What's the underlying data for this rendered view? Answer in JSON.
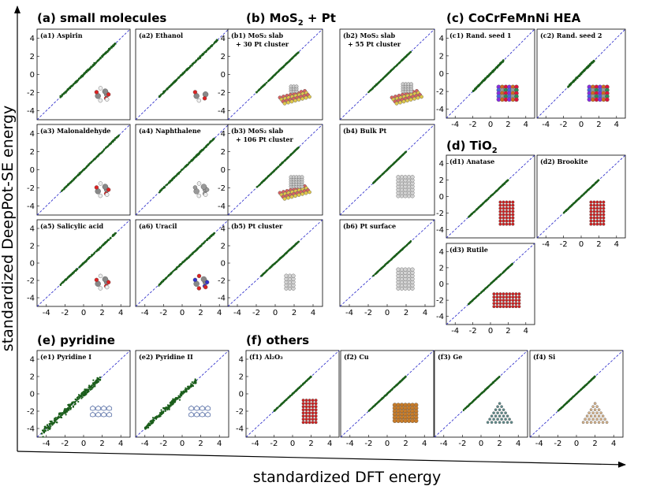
{
  "figure": {
    "x_title": "standardized DFT energy",
    "y_title": "standardized DeepPot-SE energy"
  },
  "sections": [
    {
      "id": "a",
      "title": "(a) small molecules"
    },
    {
      "id": "b",
      "title": "(b) MoS",
      "sub": "2",
      "suffix": " + Pt"
    },
    {
      "id": "c",
      "title": "(c) CoCrFeMnNi HEA"
    },
    {
      "id": "d",
      "title": "(d) TiO",
      "sub": "2"
    },
    {
      "id": "e",
      "title": "(e) pyridine"
    },
    {
      "id": "f",
      "title": "(f) others"
    }
  ],
  "colors": {
    "points": "#1b5e1b",
    "diagonal": "#2020c8",
    "axis_arrow": "#000000"
  },
  "chart_data": [
    {
      "id": "a1",
      "type": "scatter",
      "title": "(a1) Aspirin",
      "title2": "",
      "xlim": [
        -5,
        5
      ],
      "ylim": [
        -5,
        5
      ],
      "xticks": [],
      "yticks": [
        -4,
        -2,
        0,
        2,
        4
      ],
      "points": {
        "xmin": -2.5,
        "xmax": 3.5,
        "noise": 0.09
      },
      "inset": "aspirin molecule"
    },
    {
      "id": "a2",
      "type": "scatter",
      "title": "(a2) Ethanol",
      "title2": "",
      "xlim": [
        -5,
        5
      ],
      "ylim": [
        -5,
        5
      ],
      "xticks": [],
      "yticks": [],
      "points": {
        "xmin": -2.5,
        "xmax": 3.8,
        "noise": 0.08
      },
      "inset": "ethanol molecule"
    },
    {
      "id": "a3",
      "type": "scatter",
      "title": "(a3) Malonaldehyde",
      "title2": "",
      "xlim": [
        -5,
        5
      ],
      "ylim": [
        -5,
        5
      ],
      "xticks": [],
      "yticks": [
        -4,
        -2,
        0,
        2,
        4
      ],
      "points": {
        "xmin": -2.5,
        "xmax": 3.8,
        "noise": 0.06
      },
      "inset": "malonaldehyde molecule"
    },
    {
      "id": "a4",
      "type": "scatter",
      "title": "(a4) Naphthalene",
      "title2": "",
      "xlim": [
        -5,
        5
      ],
      "ylim": [
        -5,
        5
      ],
      "xticks": [],
      "yticks": [],
      "points": {
        "xmin": -2.5,
        "xmax": 3.5,
        "noise": 0.07
      },
      "inset": "naphthalene molecule"
    },
    {
      "id": "a5",
      "type": "scatter",
      "title": "(a5) Salicylic acid",
      "title2": "",
      "xlim": [
        -5,
        5
      ],
      "ylim": [
        -5,
        5
      ],
      "xticks": [
        -4,
        -2,
        0,
        2,
        4
      ],
      "yticks": [
        -4,
        -2,
        0,
        2,
        4
      ],
      "points": {
        "xmin": -2.5,
        "xmax": 3.5,
        "noise": 0.08
      },
      "inset": "salicylic acid molecule"
    },
    {
      "id": "a6",
      "type": "scatter",
      "title": "(a6) Uracil",
      "title2": "",
      "xlim": [
        -5,
        5
      ],
      "ylim": [
        -5,
        5
      ],
      "xticks": [
        -4,
        -2,
        0,
        2,
        4
      ],
      "yticks": [],
      "points": {
        "xmin": -2.5,
        "xmax": 3.5,
        "noise": 0.07
      },
      "inset": "uracil molecule"
    },
    {
      "id": "b1",
      "type": "scatter",
      "title": "(b1) MoS₂ slab",
      "title2": "+ 30 Pt cluster",
      "xlim": [
        -5,
        5
      ],
      "ylim": [
        -5,
        5
      ],
      "xticks": [],
      "yticks": [
        -4,
        -2,
        0,
        2,
        4
      ],
      "points": {
        "xmin": -2.0,
        "xmax": 2.5,
        "noise": 0.04
      },
      "inset": "MoS2 slab with 30 Pt cluster"
    },
    {
      "id": "b2",
      "type": "scatter",
      "title": "(b2) MoS₂ slab",
      "title2": "+ 55 Pt cluster",
      "xlim": [
        -5,
        5
      ],
      "ylim": [
        -5,
        5
      ],
      "xticks": [],
      "yticks": [],
      "points": {
        "xmin": -2.0,
        "xmax": 2.5,
        "noise": 0.04
      },
      "inset": "MoS2 slab with 55 Pt cluster"
    },
    {
      "id": "b3",
      "type": "scatter",
      "title": "(b3) MoS₂ slab",
      "title2": "+ 106 Pt cluster",
      "xlim": [
        -5,
        5
      ],
      "ylim": [
        -5,
        5
      ],
      "xticks": [],
      "yticks": [
        -4,
        -2,
        0,
        2,
        4
      ],
      "points": {
        "xmin": -2.0,
        "xmax": 2.5,
        "noise": 0.04
      },
      "inset": "MoS2 slab with 106 Pt cluster"
    },
    {
      "id": "b4",
      "type": "scatter",
      "title": "(b4) Bulk Pt",
      "title2": "",
      "xlim": [
        -5,
        5
      ],
      "ylim": [
        -5,
        5
      ],
      "xticks": [],
      "yticks": [],
      "points": {
        "xmin": -1.5,
        "xmax": 2.0,
        "noise": 0.03
      },
      "inset": "bulk Pt"
    },
    {
      "id": "b5",
      "type": "scatter",
      "title": "(b5) Pt cluster",
      "title2": "",
      "xlim": [
        -5,
        5
      ],
      "ylim": [
        -5,
        5
      ],
      "xticks": [
        -4,
        -2,
        0,
        2,
        4
      ],
      "yticks": [
        -4,
        -2,
        0,
        2,
        4
      ],
      "points": {
        "xmin": -1.5,
        "xmax": 2.5,
        "noise": 0.04
      },
      "inset": "Pt cluster"
    },
    {
      "id": "b6",
      "type": "scatter",
      "title": "(b6) Pt surface",
      "title2": "",
      "xlim": [
        -5,
        5
      ],
      "ylim": [
        -5,
        5
      ],
      "xticks": [
        -4,
        -2,
        0,
        2,
        4
      ],
      "yticks": [],
      "points": {
        "xmin": -1.5,
        "xmax": 2.5,
        "noise": 0.04
      },
      "inset": "Pt surface"
    },
    {
      "id": "c1",
      "type": "scatter",
      "title": "(c1) Rand. seed 1",
      "title2": "",
      "xlim": [
        -5,
        5
      ],
      "ylim": [
        -5,
        5
      ],
      "xticks": [
        -4,
        -2,
        0,
        2,
        4
      ],
      "yticks": [
        -4,
        -2,
        0,
        2,
        4
      ],
      "points": {
        "xmin": -2.0,
        "xmax": 1.5,
        "noise": 0.08
      },
      "inset": "HEA random seed 1"
    },
    {
      "id": "c2",
      "type": "scatter",
      "title": "(c2) Rand. seed 2",
      "title2": "",
      "xlim": [
        -5,
        5
      ],
      "ylim": [
        -5,
        5
      ],
      "xticks": [
        -4,
        -2,
        0,
        2,
        4
      ],
      "yticks": [],
      "points": {
        "xmin": -1.5,
        "xmax": 1.5,
        "noise": 0.08
      },
      "inset": "HEA random seed 2"
    },
    {
      "id": "d1",
      "type": "scatter",
      "title": "(d1) Anatase",
      "title2": "",
      "xlim": [
        -5,
        5
      ],
      "ylim": [
        -5,
        5
      ],
      "xticks": [],
      "yticks": [
        -4,
        -2,
        0,
        2,
        4
      ],
      "points": {
        "xmin": -2.5,
        "xmax": 2.0,
        "noise": 0.04
      },
      "inset": "anatase TiO2"
    },
    {
      "id": "d2",
      "type": "scatter",
      "title": "(d2) Brookite",
      "title2": "",
      "xlim": [
        -5,
        5
      ],
      "ylim": [
        -5,
        5
      ],
      "xticks": [
        -4,
        -2,
        0,
        2,
        4
      ],
      "yticks": [],
      "points": {
        "xmin": -2.0,
        "xmax": 2.0,
        "noise": 0.04
      },
      "inset": "brookite TiO2"
    },
    {
      "id": "d3",
      "type": "scatter",
      "title": "(d3) Rutile",
      "title2": "",
      "xlim": [
        -5,
        5
      ],
      "ylim": [
        -5,
        5
      ],
      "xticks": [
        -4,
        -2,
        0,
        2,
        4
      ],
      "yticks": [
        -4,
        -2,
        0,
        2,
        4
      ],
      "points": {
        "xmin": -2.5,
        "xmax": 2.5,
        "noise": 0.04
      },
      "inset": "rutile TiO2"
    },
    {
      "id": "e1",
      "type": "scatter",
      "title": "(e1) Pyridine I",
      "title2": "",
      "xlim": [
        -5,
        5
      ],
      "ylim": [
        -5,
        5
      ],
      "xticks": [
        -4,
        -2,
        0,
        2,
        4
      ],
      "yticks": [
        -4,
        -2,
        0,
        2,
        4
      ],
      "points": {
        "xmin": -4.5,
        "xmax": 1.8,
        "noise": 0.35
      },
      "inset": "pyridine I crystal"
    },
    {
      "id": "e2",
      "type": "scatter",
      "title": "(e2) Pyridine II",
      "title2": "",
      "xlim": [
        -5,
        5
      ],
      "ylim": [
        -5,
        5
      ],
      "xticks": [
        -4,
        -2,
        0,
        2,
        4
      ],
      "yticks": [],
      "points": {
        "xmin": -4.0,
        "xmax": 1.5,
        "noise": 0.25
      },
      "inset": "pyridine II crystal"
    },
    {
      "id": "f1",
      "type": "scatter",
      "title": "(f1) Al₂O₃",
      "title2": "",
      "xlim": [
        -5,
        5
      ],
      "ylim": [
        -5,
        5
      ],
      "xticks": [
        -4,
        -2,
        0,
        2,
        4
      ],
      "yticks": [
        -4,
        -2,
        0,
        2,
        4
      ],
      "points": {
        "xmin": -2.0,
        "xmax": 2.0,
        "noise": 0.04
      },
      "inset": "Al2O3 crystal"
    },
    {
      "id": "f2",
      "type": "scatter",
      "title": "(f2) Cu",
      "title2": "",
      "xlim": [
        -5,
        5
      ],
      "ylim": [
        -5,
        5
      ],
      "xticks": [
        -4,
        -2,
        0,
        2,
        4
      ],
      "yticks": [],
      "points": {
        "xmin": -2.0,
        "xmax": 2.0,
        "noise": 0.04
      },
      "inset": "Cu crystal"
    },
    {
      "id": "f3",
      "type": "scatter",
      "title": "(f3) Ge",
      "title2": "",
      "xlim": [
        -5,
        5
      ],
      "ylim": [
        -5,
        5
      ],
      "xticks": [
        -4,
        -2,
        0,
        2,
        4
      ],
      "yticks": [],
      "points": {
        "xmin": -2.0,
        "xmax": 2.0,
        "noise": 0.04
      },
      "inset": "Ge crystal"
    },
    {
      "id": "f4",
      "type": "scatter",
      "title": "(f4) Si",
      "title2": "",
      "xlim": [
        -5,
        5
      ],
      "ylim": [
        -5,
        5
      ],
      "xticks": [
        -4,
        -2,
        0,
        2,
        4
      ],
      "yticks": [],
      "points": {
        "xmin": -2.0,
        "xmax": 2.0,
        "noise": 0.04
      },
      "inset": "Si crystal"
    }
  ]
}
